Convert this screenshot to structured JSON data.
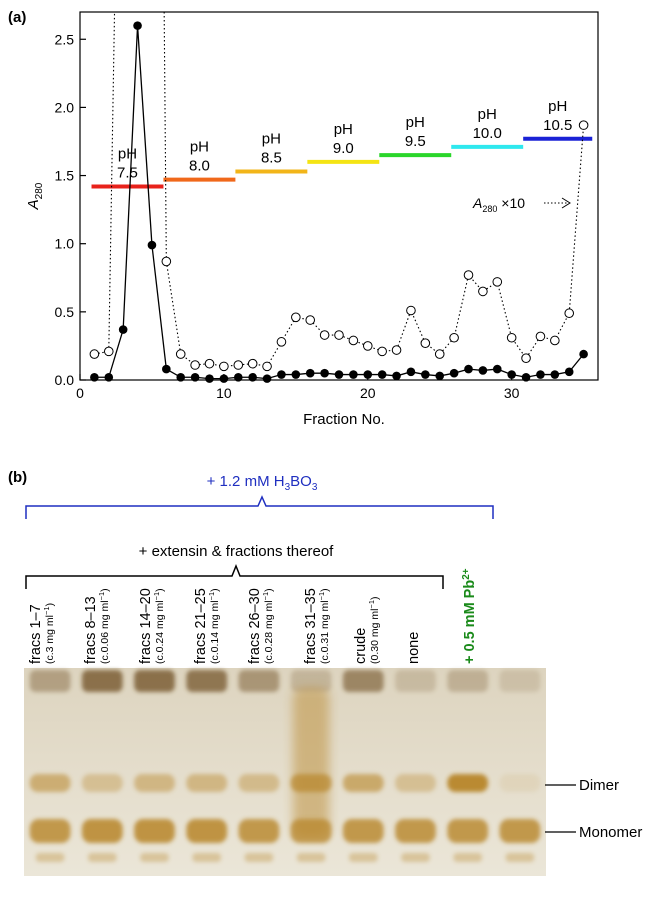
{
  "panel_a": {
    "label": "(a)"
  },
  "panel_b": {
    "label": "(b)",
    "outer_bracket_label": "+ 1.2 mM H",
    "outer_bracket_sub": "3",
    "outer_bracket_suffix": "BO",
    "outer_bracket_sub2": "3",
    "inner_bracket_label": "+ extensin & fractions thereof",
    "lanes": [
      {
        "label": "fracs 1–7",
        "conc": "(c.3 mg ml",
        "sup": "−1",
        "close": ")"
      },
      {
        "label": "fracs 8–13",
        "conc": "(c.0.06 mg ml",
        "sup": "−1",
        "close": ")"
      },
      {
        "label": "fracs 14–20",
        "conc": "(c.0.24 mg ml",
        "sup": "−1",
        "close": ")"
      },
      {
        "label": "fracs 21–25",
        "conc": "(c.0.14 mg ml",
        "sup": "−1",
        "close": ")"
      },
      {
        "label": "fracs 26–30",
        "conc": "(c.0.28 mg ml",
        "sup": "−1",
        "close": ")"
      },
      {
        "label": "fracs 31–35",
        "conc": "(c.0.31 mg ml",
        "sup": "−1",
        "close": ")"
      },
      {
        "label": "crude",
        "conc": "(0.30 mg ml",
        "sup": "−1",
        "close": ")"
      },
      {
        "label": "none",
        "conc": "",
        "sup": "",
        "close": ""
      }
    ],
    "pb_label": "+ 0.5 mM Pb",
    "pb_sup": "2+",
    "band_labels": {
      "dimer": "Dimer",
      "monomer": "Monomer"
    }
  },
  "colors": {
    "outer_bracket": "#1f2fc0",
    "pb_text": "#1a8a1a",
    "gel_bg": "#e7e1d0",
    "band": "#b8862a"
  },
  "gel_lanes": [
    {
      "top": 0.5,
      "dimer": 0.55,
      "monomer": 0.8,
      "smear": 0
    },
    {
      "top": 0.95,
      "dimer": 0.35,
      "monomer": 0.85,
      "smear": 0
    },
    {
      "top": 0.95,
      "dimer": 0.45,
      "monomer": 0.85,
      "smear": 0
    },
    {
      "top": 0.9,
      "dimer": 0.45,
      "monomer": 0.85,
      "smear": 0
    },
    {
      "top": 0.6,
      "dimer": 0.4,
      "monomer": 0.8,
      "smear": 0
    },
    {
      "top": 0.3,
      "dimer": 0.7,
      "monomer": 0.75,
      "smear": 0.85
    },
    {
      "top": 0.75,
      "dimer": 0.6,
      "monomer": 0.8,
      "smear": 0
    },
    {
      "top": 0.25,
      "dimer": 0.35,
      "monomer": 0.8,
      "smear": 0
    },
    {
      "top": 0.35,
      "dimer": 0.95,
      "monomer": 0.8,
      "smear": 0
    },
    {
      "top": 0.2,
      "dimer": 0.1,
      "monomer": 0.8,
      "smear": 0
    }
  ],
  "chart_data": {
    "type": "line",
    "xlabel": "Fraction No.",
    "ylabel": "A",
    "ylabel_sub": "280",
    "xlim": [
      0,
      36
    ],
    "ylim": [
      0,
      2.7
    ],
    "xticks": [
      0,
      10,
      20,
      30
    ],
    "yticks": [
      0.0,
      0.5,
      1.0,
      1.5,
      2.0,
      2.5
    ],
    "ytick_labels": [
      "0.0",
      "0.5",
      "1.0",
      "1.5",
      "2.0",
      "2.5"
    ],
    "series": [
      {
        "style": "filled-solid",
        "x": [
          1,
          2,
          3,
          4,
          5,
          6,
          7,
          8,
          9,
          10,
          11,
          12,
          13,
          14,
          15,
          16,
          17,
          18,
          19,
          20,
          21,
          22,
          23,
          24,
          25,
          26,
          27,
          28,
          29,
          30,
          31,
          32,
          33,
          34,
          35
        ],
        "y": [
          0.02,
          0.02,
          0.37,
          2.6,
          0.99,
          0.08,
          0.02,
          0.02,
          0.01,
          0.01,
          0.02,
          0.02,
          0.01,
          0.04,
          0.04,
          0.05,
          0.05,
          0.04,
          0.04,
          0.04,
          0.04,
          0.03,
          0.06,
          0.04,
          0.03,
          0.05,
          0.08,
          0.07,
          0.08,
          0.04,
          0.02,
          0.04,
          0.04,
          0.06,
          0.19
        ]
      },
      {
        "style": "open-dotted",
        "annotation": "A",
        "annotation_sub": "280",
        "annotation_suffix": " ×10",
        "x": [
          1,
          2,
          3,
          4,
          5,
          6,
          7,
          8,
          9,
          10,
          11,
          12,
          13,
          14,
          15,
          16,
          17,
          18,
          19,
          20,
          21,
          22,
          23,
          24,
          25,
          26,
          27,
          28,
          29,
          30,
          31,
          32,
          33,
          34,
          35
        ],
        "y": [
          0.19,
          0.21,
          null,
          null,
          null,
          0.87,
          0.19,
          0.11,
          0.12,
          0.1,
          0.11,
          0.12,
          0.1,
          0.28,
          0.46,
          0.44,
          0.33,
          0.33,
          0.29,
          0.25,
          0.21,
          0.22,
          0.51,
          0.27,
          0.19,
          0.31,
          0.77,
          0.65,
          0.72,
          0.31,
          0.16,
          0.32,
          0.29,
          0.49,
          1.87
        ]
      }
    ],
    "offscale_segments": [
      [
        2,
        3
      ],
      [
        5,
        6
      ]
    ],
    "ph_steps": [
      {
        "label_line1": "pH",
        "label_line2": "7.5",
        "x1": 0.8,
        "x2": 5.8,
        "y": 1.42,
        "color": "#e8221b"
      },
      {
        "label_line1": "pH",
        "label_line2": "8.0",
        "x1": 5.8,
        "x2": 10.8,
        "y": 1.47,
        "color": "#f0681a"
      },
      {
        "label_line1": "pH",
        "label_line2": "8.5",
        "x1": 10.8,
        "x2": 15.8,
        "y": 1.53,
        "color": "#f2b519"
      },
      {
        "label_line1": "pH",
        "label_line2": "9.0",
        "x1": 15.8,
        "x2": 20.8,
        "y": 1.6,
        "color": "#f4e414"
      },
      {
        "label_line1": "pH",
        "label_line2": "9.5",
        "x1": 20.8,
        "x2": 25.8,
        "y": 1.65,
        "color": "#2ad62a"
      },
      {
        "label_line1": "pH",
        "label_line2": "10.0",
        "x1": 25.8,
        "x2": 30.8,
        "y": 1.71,
        "color": "#2ee8ee"
      },
      {
        "label_line1": "pH",
        "label_line2": "10.5",
        "x1": 30.8,
        "x2": 35.6,
        "y": 1.77,
        "color": "#1a22d6"
      }
    ]
  }
}
